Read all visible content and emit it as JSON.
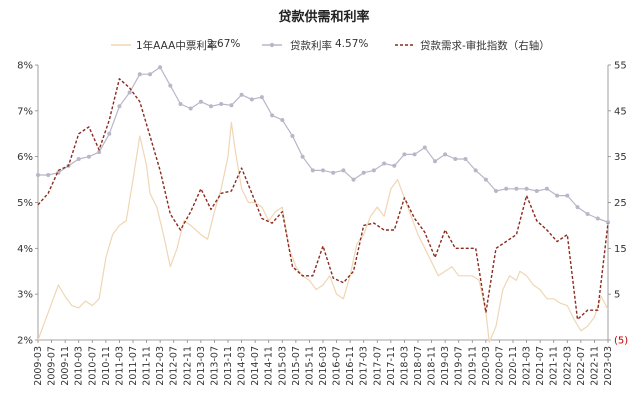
{
  "chart_data": {
    "type": "line",
    "title": "贷款供需和利率",
    "legend": {
      "placement": "top",
      "entries": [
        {
          "label": "1年AAA中票利率",
          "value": "2.67%"
        },
        {
          "label": "贷款利率",
          "value": "4.57%"
        },
        {
          "label": "贷款需求-审批指数（右轴）",
          "value": ""
        }
      ]
    },
    "x_ticks": [
      "2009-03",
      "2009-07",
      "2009-11",
      "2010-03",
      "2010-07",
      "2010-11",
      "2011-03",
      "2011-07",
      "2011-11",
      "2012-03",
      "2012-07",
      "2012-11",
      "2013-03",
      "2013-07",
      "2013-11",
      "2014-03",
      "2014-07",
      "2014-11",
      "2015-03",
      "2015-07",
      "2015-11",
      "2016-03",
      "2016-07",
      "2016-11",
      "2017-03",
      "2017-07",
      "2017-11",
      "2018-03",
      "2018-07",
      "2018-11",
      "2019-03",
      "2019-07",
      "2019-11",
      "2020-03",
      "2020-07",
      "2020-11",
      "2021-03",
      "2021-07",
      "2021-11",
      "2022-03",
      "2022-07",
      "2022-11",
      "2023-03"
    ],
    "left_axis": {
      "ticks": [
        "2%",
        "3%",
        "4%",
        "5%",
        "6%",
        "7%",
        "8%"
      ],
      "ylim": [
        2,
        8
      ]
    },
    "right_axis": {
      "ticks": [
        "(5)",
        "5",
        "15",
        "25",
        "35",
        "45",
        "55"
      ],
      "ylim": [
        -5,
        55
      ]
    },
    "xlim": [
      "2009-03",
      "2023-03"
    ],
    "grid": false,
    "series": [
      {
        "name": "1年AAA中票利率",
        "axis": "left",
        "color": "#EFD6B4",
        "points": [
          [
            "2009-03",
            2.0
          ],
          [
            "2009-05",
            2.4
          ],
          [
            "2009-07",
            2.8
          ],
          [
            "2009-09",
            3.2
          ],
          [
            "2009-11",
            2.95
          ],
          [
            "2010-01",
            2.75
          ],
          [
            "2010-03",
            2.7
          ],
          [
            "2010-05",
            2.85
          ],
          [
            "2010-07",
            2.75
          ],
          [
            "2010-09",
            2.9
          ],
          [
            "2010-11",
            3.8
          ],
          [
            "2011-01",
            4.3
          ],
          [
            "2011-03",
            4.5
          ],
          [
            "2011-05",
            4.6
          ],
          [
            "2011-07",
            5.5
          ],
          [
            "2011-09",
            6.45
          ],
          [
            "2011-11",
            5.8
          ],
          [
            "2011-12",
            5.2
          ],
          [
            "2012-02",
            4.9
          ],
          [
            "2012-04",
            4.3
          ],
          [
            "2012-06",
            3.6
          ],
          [
            "2012-08",
            4.0
          ],
          [
            "2012-10",
            4.6
          ],
          [
            "2012-12",
            4.5
          ],
          [
            "2013-03",
            4.3
          ],
          [
            "2013-05",
            4.2
          ],
          [
            "2013-07",
            4.8
          ],
          [
            "2013-09",
            5.3
          ],
          [
            "2013-11",
            6.0
          ],
          [
            "2013-12",
            6.75
          ],
          [
            "2014-01",
            6.2
          ],
          [
            "2014-03",
            5.3
          ],
          [
            "2014-05",
            5.0
          ],
          [
            "2014-07",
            5.0
          ],
          [
            "2014-09",
            4.9
          ],
          [
            "2014-11",
            4.6
          ],
          [
            "2015-01",
            4.8
          ],
          [
            "2015-03",
            4.9
          ],
          [
            "2015-05",
            4.0
          ],
          [
            "2015-07",
            3.6
          ],
          [
            "2015-09",
            3.4
          ],
          [
            "2015-11",
            3.3
          ],
          [
            "2016-01",
            3.1
          ],
          [
            "2016-03",
            3.2
          ],
          [
            "2016-05",
            3.4
          ],
          [
            "2016-07",
            3.0
          ],
          [
            "2016-09",
            2.9
          ],
          [
            "2016-11",
            3.4
          ],
          [
            "2017-01",
            4.1
          ],
          [
            "2017-03",
            4.3
          ],
          [
            "2017-05",
            4.7
          ],
          [
            "2017-07",
            4.9
          ],
          [
            "2017-09",
            4.7
          ],
          [
            "2017-11",
            5.3
          ],
          [
            "2018-01",
            5.5
          ],
          [
            "2018-03",
            5.1
          ],
          [
            "2018-05",
            4.7
          ],
          [
            "2018-07",
            4.3
          ],
          [
            "2018-09",
            4.0
          ],
          [
            "2018-11",
            3.7
          ],
          [
            "2019-01",
            3.4
          ],
          [
            "2019-03",
            3.5
          ],
          [
            "2019-05",
            3.6
          ],
          [
            "2019-07",
            3.4
          ],
          [
            "2019-09",
            3.4
          ],
          [
            "2019-11",
            3.4
          ],
          [
            "2020-01",
            3.3
          ],
          [
            "2020-03",
            2.6
          ],
          [
            "2020-04",
            1.95
          ],
          [
            "2020-06",
            2.3
          ],
          [
            "2020-08",
            3.1
          ],
          [
            "2020-10",
            3.4
          ],
          [
            "2020-12",
            3.3
          ],
          [
            "2021-01",
            3.5
          ],
          [
            "2021-03",
            3.4
          ],
          [
            "2021-05",
            3.2
          ],
          [
            "2021-07",
            3.1
          ],
          [
            "2021-09",
            2.9
          ],
          [
            "2021-11",
            2.9
          ],
          [
            "2022-01",
            2.8
          ],
          [
            "2022-03",
            2.75
          ],
          [
            "2022-05",
            2.45
          ],
          [
            "2022-07",
            2.2
          ],
          [
            "2022-09",
            2.3
          ],
          [
            "2022-11",
            2.5
          ],
          [
            "2023-01",
            2.95
          ],
          [
            "2023-03",
            2.67
          ]
        ]
      },
      {
        "name": "贷款利率",
        "axis": "left",
        "color": "#B7B7C9",
        "points": [
          [
            "2009-03",
            5.6
          ],
          [
            "2009-06",
            5.6
          ],
          [
            "2009-09",
            5.65
          ],
          [
            "2009-12",
            5.8
          ],
          [
            "2010-03",
            5.95
          ],
          [
            "2010-06",
            6.0
          ],
          [
            "2010-09",
            6.1
          ],
          [
            "2010-12",
            6.5
          ],
          [
            "2011-03",
            7.1
          ],
          [
            "2011-06",
            7.4
          ],
          [
            "2011-09",
            7.8
          ],
          [
            "2011-12",
            7.8
          ],
          [
            "2012-03",
            7.95
          ],
          [
            "2012-06",
            7.55
          ],
          [
            "2012-09",
            7.15
          ],
          [
            "2012-12",
            7.05
          ],
          [
            "2013-03",
            7.2
          ],
          [
            "2013-06",
            7.1
          ],
          [
            "2013-09",
            7.15
          ],
          [
            "2013-12",
            7.12
          ],
          [
            "2014-03",
            7.35
          ],
          [
            "2014-06",
            7.25
          ],
          [
            "2014-09",
            7.3
          ],
          [
            "2014-12",
            6.9
          ],
          [
            "2015-03",
            6.8
          ],
          [
            "2015-06",
            6.45
          ],
          [
            "2015-09",
            6.0
          ],
          [
            "2015-12",
            5.7
          ],
          [
            "2016-03",
            5.7
          ],
          [
            "2016-06",
            5.65
          ],
          [
            "2016-09",
            5.7
          ],
          [
            "2016-12",
            5.5
          ],
          [
            "2017-03",
            5.65
          ],
          [
            "2017-06",
            5.7
          ],
          [
            "2017-09",
            5.85
          ],
          [
            "2017-12",
            5.8
          ],
          [
            "2018-03",
            6.05
          ],
          [
            "2018-06",
            6.05
          ],
          [
            "2018-09",
            6.2
          ],
          [
            "2018-12",
            5.9
          ],
          [
            "2019-03",
            6.05
          ],
          [
            "2019-06",
            5.95
          ],
          [
            "2019-09",
            5.95
          ],
          [
            "2019-12",
            5.7
          ],
          [
            "2020-03",
            5.5
          ],
          [
            "2020-06",
            5.25
          ],
          [
            "2020-09",
            5.3
          ],
          [
            "2020-12",
            5.3
          ],
          [
            "2021-03",
            5.3
          ],
          [
            "2021-06",
            5.25
          ],
          [
            "2021-09",
            5.3
          ],
          [
            "2021-12",
            5.15
          ],
          [
            "2022-03",
            5.15
          ],
          [
            "2022-06",
            4.9
          ],
          [
            "2022-09",
            4.75
          ],
          [
            "2022-12",
            4.65
          ],
          [
            "2023-03",
            4.57
          ]
        ]
      },
      {
        "name": "贷款需求-审批指数（右轴）",
        "axis": "right",
        "color": "#8B2A1F",
        "points": [
          [
            "2009-03",
            24.5
          ],
          [
            "2009-06",
            27
          ],
          [
            "2009-09",
            32
          ],
          [
            "2009-12",
            33
          ],
          [
            "2010-03",
            40
          ],
          [
            "2010-06",
            41.5
          ],
          [
            "2010-09",
            36.5
          ],
          [
            "2010-12",
            43
          ],
          [
            "2011-03",
            52
          ],
          [
            "2011-06",
            50
          ],
          [
            "2011-09",
            47
          ],
          [
            "2011-12",
            39.5
          ],
          [
            "2012-03",
            32
          ],
          [
            "2012-06",
            22.5
          ],
          [
            "2012-09",
            19
          ],
          [
            "2012-12",
            23
          ],
          [
            "2013-03",
            28
          ],
          [
            "2013-06",
            23.5
          ],
          [
            "2013-09",
            27
          ],
          [
            "2013-12",
            27.5
          ],
          [
            "2014-03",
            32.5
          ],
          [
            "2014-06",
            27
          ],
          [
            "2014-09",
            21.5
          ],
          [
            "2014-12",
            20.5
          ],
          [
            "2015-03",
            23
          ],
          [
            "2015-06",
            11
          ],
          [
            "2015-09",
            9
          ],
          [
            "2015-12",
            9
          ],
          [
            "2016-03",
            15.5
          ],
          [
            "2016-06",
            8.5
          ],
          [
            "2016-09",
            7.5
          ],
          [
            "2016-12",
            10
          ],
          [
            "2017-03",
            20
          ],
          [
            "2017-06",
            20.5
          ],
          [
            "2017-09",
            19
          ],
          [
            "2017-12",
            19
          ],
          [
            "2018-03",
            26
          ],
          [
            "2018-06",
            21.5
          ],
          [
            "2018-09",
            18.5
          ],
          [
            "2018-12",
            13
          ],
          [
            "2019-03",
            19
          ],
          [
            "2019-06",
            15
          ],
          [
            "2019-09",
            15
          ],
          [
            "2019-12",
            15
          ],
          [
            "2020-03",
            1
          ],
          [
            "2020-06",
            15
          ],
          [
            "2020-09",
            16.5
          ],
          [
            "2020-12",
            18
          ],
          [
            "2021-03",
            26.5
          ],
          [
            "2021-06",
            21
          ],
          [
            "2021-09",
            19
          ],
          [
            "2021-12",
            16.5
          ],
          [
            "2022-03",
            18
          ],
          [
            "2022-06",
            -0.5
          ],
          [
            "2022-09",
            1.5
          ],
          [
            "2022-12",
            1.5
          ],
          [
            "2023-03",
            20.5
          ]
        ]
      }
    ]
  }
}
